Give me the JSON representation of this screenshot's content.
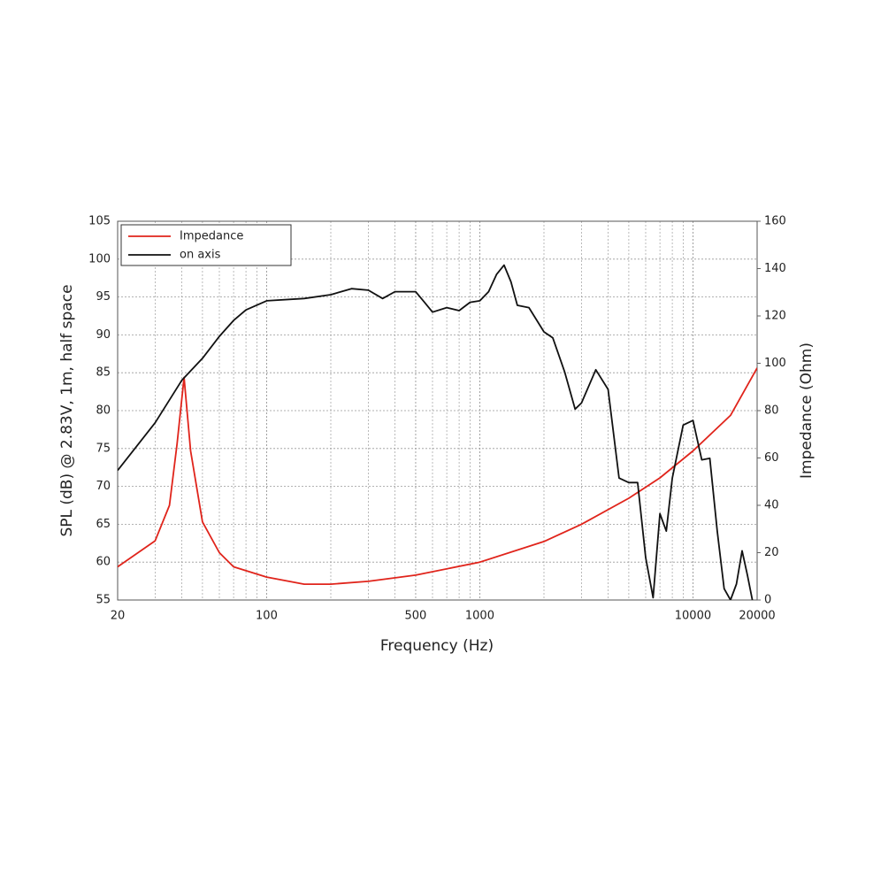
{
  "chart_data": {
    "type": "line",
    "xlabel": "Frequency (Hz)",
    "ylabel": "SPL (dB) @ 2.83V, 1m, half space",
    "y2label": "Impedance (Ohm)",
    "xscale": "log",
    "xlim": [
      20,
      20000
    ],
    "xticks": [
      20,
      100,
      500,
      1000,
      10000,
      20000
    ],
    "ylim": [
      55,
      105
    ],
    "yticks": [
      55,
      60,
      65,
      70,
      75,
      80,
      85,
      90,
      95,
      100,
      105
    ],
    "y2lim": [
      0,
      160
    ],
    "y2ticks": [
      0,
      20,
      40,
      60,
      80,
      100,
      120,
      140,
      160
    ],
    "grid": true,
    "legend": "top-left",
    "series": [
      {
        "name": "Impedance",
        "color": "#e0241b",
        "axis": "y2",
        "x": [
          20,
          30,
          35,
          38,
          41,
          44,
          50,
          60,
          70,
          100,
          150,
          200,
          300,
          500,
          1000,
          2000,
          3000,
          5000,
          7000,
          10000,
          15000,
          20000
        ],
        "values": [
          14,
          25,
          40,
          66,
          94,
          63,
          33,
          20,
          14,
          9.7,
          6.7,
          6.7,
          7.9,
          10.5,
          16,
          24.7,
          32,
          43,
          51.6,
          63,
          78,
          98
        ]
      },
      {
        "name": "on axis",
        "color": "#111111",
        "axis": "y",
        "x": [
          20,
          30,
          40,
          50,
          60,
          70,
          80,
          100,
          150,
          200,
          250,
          300,
          350,
          400,
          500,
          550,
          600,
          700,
          800,
          900,
          1000,
          1100,
          1200,
          1300,
          1400,
          1500,
          1700,
          2000,
          2200,
          2500,
          2800,
          3000,
          3500,
          4000,
          4500,
          5000,
          5500,
          6000,
          6500,
          7000,
          7500,
          8000,
          9000,
          10000,
          11000,
          12000,
          13000,
          14000,
          15000,
          16000,
          17000,
          18000,
          19000
        ],
        "values": [
          72.1,
          78.4,
          84,
          86.9,
          89.8,
          91.9,
          93.3,
          94.5,
          94.8,
          95.3,
          96.1,
          95.9,
          94.8,
          95.7,
          95.7,
          94.3,
          93,
          93.6,
          93.2,
          94.3,
          94.5,
          95.7,
          98,
          99.2,
          97,
          93.9,
          93.6,
          90.4,
          89.6,
          85.1,
          80.2,
          81,
          85.4,
          82.8,
          71.1,
          70.5,
          70.5,
          60.6,
          55.3,
          66.4,
          64.1,
          71.1,
          78.1,
          78.7,
          73.5,
          73.7,
          64.1,
          56.5,
          55,
          57.1,
          61.5,
          58.3,
          55
        ]
      }
    ]
  }
}
